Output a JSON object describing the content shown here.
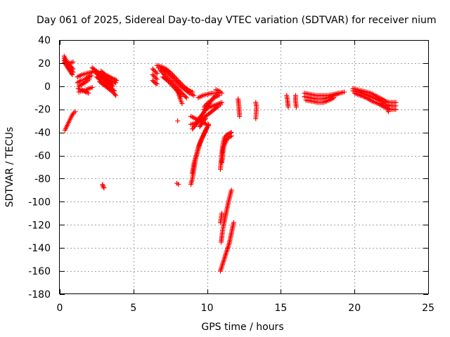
{
  "chart_data": {
    "type": "scatter",
    "title": "Day 061 of 2025, Sidereal Day-to-day VTEC variation (SDTVAR) for receiver nium",
    "xlabel": "GPS time / hours",
    "ylabel": "SDTVAR / TECUs",
    "xlim": [
      0,
      25
    ],
    "ylim": [
      -180,
      40
    ],
    "xticks": [
      0,
      5,
      10,
      15,
      20,
      25
    ],
    "yticks": [
      40,
      20,
      0,
      -20,
      -40,
      -60,
      -80,
      -100,
      -120,
      -140,
      -160,
      -180
    ],
    "grid": true,
    "marker": "+",
    "series_color": "#ff0000",
    "tracks": [
      [
        [
          0.3,
          26
        ],
        [
          0.45,
          22
        ],
        [
          0.6,
          19
        ],
        [
          0.75,
          17
        ],
        [
          0.9,
          15
        ]
      ],
      [
        [
          0.3,
          24
        ],
        [
          0.45,
          20
        ],
        [
          0.6,
          17
        ],
        [
          0.75,
          15
        ],
        [
          0.9,
          12
        ]
      ],
      [
        [
          0.3,
          22
        ],
        [
          0.45,
          18
        ],
        [
          0.6,
          15
        ],
        [
          0.75,
          12
        ],
        [
          0.85,
          10
        ]
      ],
      [
        [
          0.3,
          20
        ],
        [
          0.5,
          21
        ],
        [
          0.7,
          20
        ],
        [
          0.9,
          21
        ]
      ],
      [
        [
          0.35,
          -38
        ],
        [
          0.5,
          -34
        ],
        [
          0.65,
          -30
        ],
        [
          0.8,
          -26
        ],
        [
          0.95,
          -23
        ],
        [
          1.05,
          -22
        ]
      ],
      [
        [
          1.2,
          8
        ],
        [
          1.5,
          10
        ],
        [
          1.8,
          11
        ],
        [
          2.1,
          12
        ],
        [
          2.3,
          13
        ]
      ],
      [
        [
          1.2,
          3
        ],
        [
          1.45,
          5
        ],
        [
          1.7,
          6
        ],
        [
          1.95,
          8
        ],
        [
          2.15,
          9
        ]
      ],
      [
        [
          1.3,
          0
        ],
        [
          1.55,
          2
        ],
        [
          1.8,
          4
        ],
        [
          2.0,
          6
        ]
      ],
      [
        [
          1.3,
          -5
        ],
        [
          1.55,
          -4
        ],
        [
          1.8,
          -3
        ],
        [
          2.0,
          -2
        ],
        [
          2.2,
          -1
        ]
      ],
      [
        [
          1.25,
          -2
        ],
        [
          1.5,
          -3
        ],
        [
          1.75,
          -5
        ],
        [
          1.95,
          -6
        ]
      ],
      [
        [
          2.2,
          16
        ],
        [
          2.5,
          13
        ],
        [
          2.8,
          10
        ],
        [
          3.1,
          7
        ],
        [
          3.4,
          4
        ],
        [
          3.6,
          2
        ]
      ],
      [
        [
          2.4,
          12
        ],
        [
          2.7,
          9
        ],
        [
          3.0,
          6
        ],
        [
          3.3,
          3
        ],
        [
          3.6,
          0
        ]
      ],
      [
        [
          2.5,
          8
        ],
        [
          2.8,
          5
        ],
        [
          3.1,
          2
        ],
        [
          3.4,
          -1
        ],
        [
          3.7,
          -4
        ]
      ],
      [
        [
          2.7,
          4
        ],
        [
          3.0,
          1
        ],
        [
          3.3,
          -2
        ],
        [
          3.6,
          -5
        ],
        [
          3.8,
          -8
        ]
      ],
      [
        [
          2.8,
          13
        ],
        [
          3.1,
          10
        ],
        [
          3.4,
          8
        ],
        [
          3.7,
          6
        ],
        [
          3.85,
          5
        ]
      ],
      [
        [
          3.0,
          8
        ],
        [
          3.3,
          6
        ],
        [
          3.6,
          4
        ],
        [
          3.8,
          3
        ]
      ],
      [
        [
          2.9,
          -85
        ],
        [
          2.95,
          -87
        ],
        [
          3.0,
          -88
        ]
      ],
      [
        [
          6.3,
          15
        ],
        [
          6.45,
          13
        ],
        [
          6.6,
          11
        ]
      ],
      [
        [
          6.3,
          10
        ],
        [
          6.45,
          8
        ],
        [
          6.6,
          6
        ]
      ],
      [
        [
          6.3,
          5
        ],
        [
          6.45,
          3
        ],
        [
          6.6,
          2
        ]
      ],
      [
        [
          6.6,
          18
        ],
        [
          6.9,
          17
        ],
        [
          7.2,
          15
        ],
        [
          7.5,
          12
        ],
        [
          7.8,
          8
        ],
        [
          8.1,
          4
        ],
        [
          8.4,
          0
        ],
        [
          8.7,
          -3
        ],
        [
          9.0,
          -5
        ]
      ],
      [
        [
          6.7,
          16
        ],
        [
          7.0,
          15
        ],
        [
          7.3,
          12
        ],
        [
          7.6,
          8
        ],
        [
          7.9,
          4
        ],
        [
          8.2,
          0
        ],
        [
          8.5,
          -3
        ],
        [
          8.8,
          -6
        ],
        [
          9.1,
          -8
        ]
      ],
      [
        [
          6.8,
          14
        ],
        [
          7.1,
          10
        ],
        [
          7.4,
          6
        ],
        [
          7.7,
          2
        ],
        [
          8.0,
          -2
        ],
        [
          8.3,
          -6
        ],
        [
          8.6,
          -10
        ]
      ],
      [
        [
          7.0,
          8
        ],
        [
          7.3,
          5
        ],
        [
          7.6,
          1
        ],
        [
          7.9,
          -3
        ],
        [
          8.2,
          -7
        ]
      ],
      [
        [
          7.9,
          -3
        ],
        [
          8.05,
          -6
        ],
        [
          8.2,
          -9
        ]
      ],
      [
        [
          8.1,
          -8
        ],
        [
          8.2,
          -12
        ],
        [
          8.3,
          -15
        ]
      ],
      [
        [
          8.0,
          -30
        ]
      ],
      [
        [
          7.95,
          -84
        ],
        [
          8.05,
          -85
        ]
      ],
      [
        [
          8.9,
          -85
        ],
        [
          9.0,
          -80
        ],
        [
          9.1,
          -72
        ],
        [
          9.2,
          -64
        ],
        [
          9.35,
          -57
        ],
        [
          9.5,
          -50
        ],
        [
          9.7,
          -44
        ],
        [
          9.9,
          -38
        ],
        [
          10.1,
          -33
        ]
      ],
      [
        [
          9.0,
          -75
        ],
        [
          9.1,
          -67
        ],
        [
          9.25,
          -60
        ],
        [
          9.4,
          -53
        ],
        [
          9.6,
          -46
        ],
        [
          9.8,
          -41
        ],
        [
          10.0,
          -36
        ]
      ],
      [
        [
          8.9,
          -26
        ],
        [
          9.2,
          -28
        ],
        [
          9.5,
          -30
        ],
        [
          9.8,
          -32
        ],
        [
          10.1,
          -34
        ]
      ],
      [
        [
          8.9,
          -33
        ],
        [
          9.2,
          -32
        ],
        [
          9.5,
          -30
        ],
        [
          9.8,
          -27
        ],
        [
          10.1,
          -24
        ],
        [
          10.4,
          -21
        ],
        [
          10.7,
          -18
        ],
        [
          10.9,
          -16
        ]
      ],
      [
        [
          9.0,
          -37
        ],
        [
          9.2,
          -34
        ],
        [
          9.4,
          -30
        ],
        [
          9.6,
          -26
        ],
        [
          9.8,
          -22
        ],
        [
          10.0,
          -18
        ]
      ],
      [
        [
          9.5,
          -27
        ],
        [
          9.7,
          -24
        ],
        [
          9.9,
          -20
        ],
        [
          10.1,
          -16
        ],
        [
          10.3,
          -12
        ],
        [
          10.5,
          -9
        ],
        [
          10.7,
          -7
        ]
      ],
      [
        [
          9.8,
          -18
        ],
        [
          10.0,
          -15
        ],
        [
          10.2,
          -13
        ],
        [
          10.4,
          -11
        ],
        [
          10.6,
          -9
        ],
        [
          10.8,
          -8
        ]
      ],
      [
        [
          9.5,
          -35
        ],
        [
          9.7,
          -31
        ],
        [
          9.9,
          -28
        ]
      ],
      [
        [
          9.4,
          -10
        ],
        [
          9.7,
          -8
        ],
        [
          10.0,
          -7
        ],
        [
          10.3,
          -6
        ],
        [
          10.6,
          -6
        ],
        [
          10.9,
          -5
        ]
      ],
      [
        [
          9.8,
          -20
        ],
        [
          10.2,
          -18
        ],
        [
          10.6,
          -16
        ],
        [
          11.0,
          -14
        ]
      ],
      [
        [
          10.6,
          -3
        ],
        [
          10.8,
          -4
        ],
        [
          11.0,
          -6
        ]
      ],
      [
        [
          10.9,
          -72
        ],
        [
          10.95,
          -64
        ],
        [
          11.0,
          -57
        ],
        [
          11.05,
          -52
        ],
        [
          11.1,
          -48
        ],
        [
          11.2,
          -44
        ],
        [
          11.35,
          -42
        ],
        [
          11.5,
          -41
        ],
        [
          11.65,
          -40
        ]
      ],
      [
        [
          11.0,
          -66
        ],
        [
          11.05,
          -60
        ],
        [
          11.1,
          -54
        ],
        [
          11.2,
          -50
        ],
        [
          11.35,
          -46
        ],
        [
          11.5,
          -44
        ],
        [
          11.65,
          -43
        ]
      ],
      [
        [
          10.95,
          -135
        ],
        [
          11.05,
          -125
        ],
        [
          11.15,
          -118
        ],
        [
          11.25,
          -112
        ],
        [
          11.35,
          -106
        ],
        [
          11.45,
          -100
        ],
        [
          11.55,
          -95
        ],
        [
          11.65,
          -90
        ]
      ],
      [
        [
          10.9,
          -160
        ],
        [
          11.05,
          -154
        ],
        [
          11.2,
          -148
        ],
        [
          11.35,
          -142
        ],
        [
          11.5,
          -136
        ],
        [
          11.6,
          -130
        ],
        [
          11.7,
          -124
        ],
        [
          11.8,
          -118
        ]
      ],
      [
        [
          10.9,
          -118
        ],
        [
          11.0,
          -110
        ]
      ],
      [
        [
          12.1,
          -11
        ],
        [
          12.15,
          -17
        ],
        [
          12.2,
          -26
        ]
      ],
      [
        [
          13.3,
          -14
        ],
        [
          13.35,
          -18
        ],
        [
          13.3,
          -28
        ]
      ],
      [
        [
          15.4,
          -8
        ],
        [
          15.45,
          -12
        ],
        [
          15.5,
          -18
        ]
      ],
      [
        [
          16.0,
          -8
        ],
        [
          16.0,
          -13
        ],
        [
          16.05,
          -18
        ]
      ],
      [
        [
          16.6,
          -6
        ],
        [
          17.0,
          -7
        ],
        [
          17.4,
          -8
        ],
        [
          17.8,
          -8
        ],
        [
          18.2,
          -8
        ],
        [
          18.6,
          -7
        ],
        [
          18.9,
          -6
        ]
      ],
      [
        [
          16.6,
          -9
        ],
        [
          17.0,
          -10
        ],
        [
          17.4,
          -11
        ],
        [
          17.8,
          -11
        ],
        [
          18.2,
          -10
        ],
        [
          18.6,
          -8
        ],
        [
          19.0,
          -6
        ],
        [
          19.3,
          -5
        ]
      ],
      [
        [
          16.7,
          -12
        ],
        [
          17.1,
          -13
        ],
        [
          17.5,
          -14
        ],
        [
          17.9,
          -14
        ],
        [
          18.3,
          -12
        ],
        [
          18.6,
          -10
        ]
      ],
      [
        [
          19.9,
          -2
        ],
        [
          20.2,
          -3
        ],
        [
          20.5,
          -4
        ],
        [
          20.8,
          -5
        ],
        [
          21.1,
          -6
        ],
        [
          21.4,
          -8
        ],
        [
          21.7,
          -10
        ],
        [
          22.0,
          -12
        ],
        [
          22.2,
          -14
        ]
      ],
      [
        [
          19.9,
          -4
        ],
        [
          20.3,
          -5
        ],
        [
          20.7,
          -7
        ],
        [
          21.1,
          -9
        ],
        [
          21.5,
          -11
        ],
        [
          21.8,
          -13
        ],
        [
          22.0,
          -16
        ],
        [
          22.2,
          -18
        ],
        [
          22.3,
          -22
        ]
      ],
      [
        [
          20.0,
          -6
        ],
        [
          20.4,
          -8
        ],
        [
          20.8,
          -10
        ],
        [
          21.2,
          -13
        ],
        [
          21.6,
          -15
        ],
        [
          22.0,
          -18
        ],
        [
          22.4,
          -20
        ],
        [
          22.8,
          -20
        ]
      ],
      [
        [
          22.0,
          -13
        ],
        [
          22.4,
          -14
        ],
        [
          22.8,
          -14
        ]
      ],
      [
        [
          22.1,
          -16
        ],
        [
          22.5,
          -17
        ],
        [
          22.8,
          -17
        ]
      ]
    ]
  }
}
